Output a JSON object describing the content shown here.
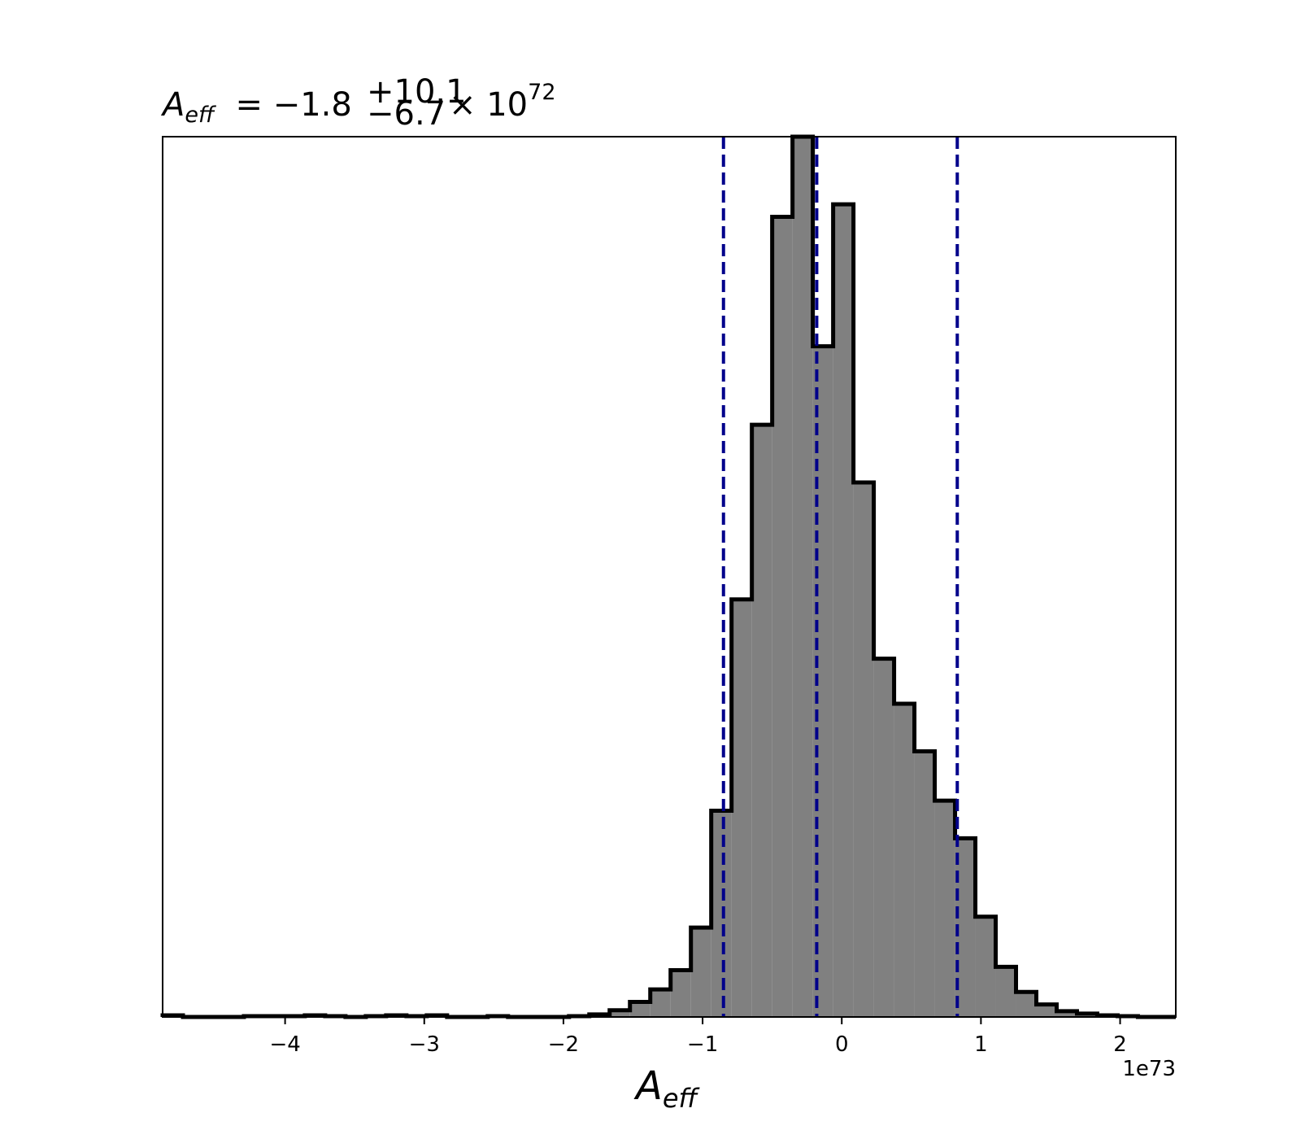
{
  "chart_data": {
    "type": "bar",
    "title": {
      "symbol": "A",
      "symbol_subscript": "eff",
      "prefix": "= −1.8",
      "upper_error": "+10.1",
      "lower_error": "−6.7",
      "multiplier": "× 10",
      "exponent": "72"
    },
    "xlabel": {
      "symbol": "A",
      "subscript": "eff"
    },
    "ylabel": "",
    "offset_text": "1e73",
    "x_scale": 1e+73,
    "xlim": [
      -4.88,
      2.4
    ],
    "ylim": [
      0,
      105.4
    ],
    "yticks_visible": false,
    "grid": false,
    "fill_color": "#808080",
    "edge_color": "#000000",
    "line_color": "#00008b",
    "xticks": [
      {
        "value": -4,
        "label": "−4"
      },
      {
        "value": -3,
        "label": "−3"
      },
      {
        "value": -2,
        "label": "−2"
      },
      {
        "value": -1,
        "label": "−1"
      },
      {
        "value": 0,
        "label": "0"
      },
      {
        "value": 1,
        "label": "1"
      },
      {
        "value": 2,
        "label": "2"
      }
    ],
    "bin_edges": [
      -4.88,
      -4.734,
      -4.588,
      -4.442,
      -4.296,
      -4.15,
      -4.004,
      -3.858,
      -3.712,
      -3.566,
      -3.42,
      -3.274,
      -3.128,
      -2.982,
      -2.836,
      -2.69,
      -2.544,
      -2.398,
      -2.252,
      -2.106,
      -1.96,
      -1.814,
      -1.668,
      -1.522,
      -1.376,
      -1.23,
      -1.084,
      -0.938,
      -0.792,
      -0.646,
      -0.5,
      -0.354,
      -0.208,
      -0.062,
      0.084,
      0.23,
      0.376,
      0.522,
      0.668,
      0.814,
      0.96,
      1.106,
      1.252,
      1.398,
      1.544,
      1.69,
      1.836,
      1.982,
      2.128,
      2.274,
      2.42
    ],
    "counts": [
      0.2,
      0.0,
      0.0,
      0.0,
      0.1,
      0.1,
      0.1,
      0.2,
      0.1,
      0.0,
      0.1,
      0.2,
      0.1,
      0.2,
      0.0,
      0.0,
      0.1,
      0.0,
      0.0,
      0.0,
      0.1,
      0.3,
      0.8,
      1.8,
      3.3,
      5.6,
      10.7,
      24.7,
      50.0,
      70.9,
      95.8,
      105.4,
      80.3,
      97.3,
      64.0,
      42.9,
      37.5,
      31.8,
      25.9,
      21.4,
      12.0,
      6.0,
      3.0,
      1.5,
      0.7,
      0.4,
      0.2,
      0.1,
      0.0,
      0.0
    ],
    "vlines": [
      {
        "name": "lower-quantile",
        "x": -0.85
      },
      {
        "name": "median",
        "x": -0.18
      },
      {
        "name": "upper-quantile",
        "x": 0.83
      }
    ]
  }
}
